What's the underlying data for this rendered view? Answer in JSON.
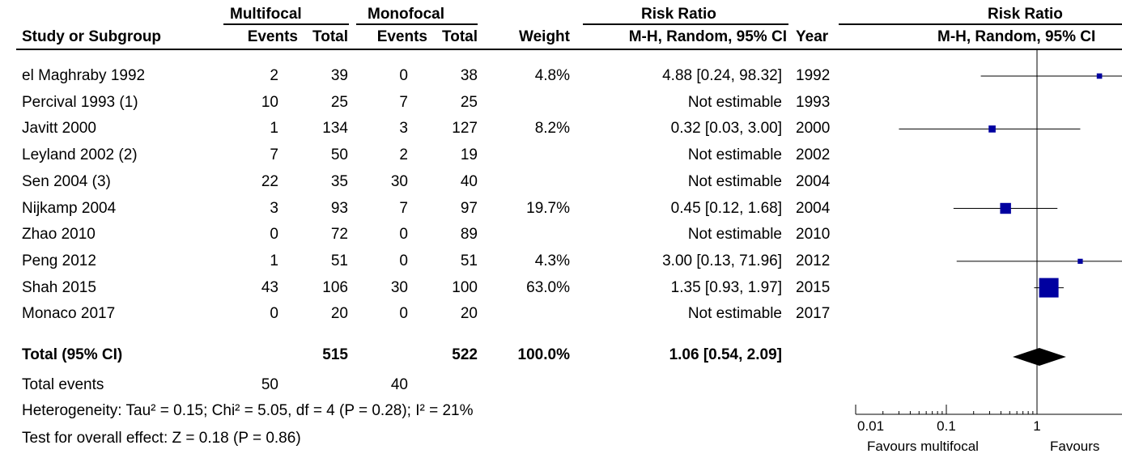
{
  "table": {
    "group_headers": {
      "multifocal": "Multifocal",
      "monofocal": "Monofocal",
      "risk_ratio": "Risk Ratio",
      "risk_ratio_plot": "Risk Ratio"
    },
    "columns": {
      "study": "Study or Subgroup",
      "events1": "Events",
      "total1": "Total",
      "events2": "Events",
      "total2": "Total",
      "weight": "Weight",
      "ci": "M-H, Random, 95% CI",
      "year": "Year",
      "plot_ci": "M-H, Random, 95% CI"
    },
    "rows": [
      {
        "study": "el Maghraby 1992",
        "events1": "2",
        "total1": "39",
        "events2": "0",
        "total2": "38",
        "weight": "4.8%",
        "ci": "4.88 [0.24, 98.32]",
        "year": "1992"
      },
      {
        "study": "Percival 1993 (1)",
        "events1": "10",
        "total1": "25",
        "events2": "7",
        "total2": "25",
        "weight": "",
        "ci": "Not estimable",
        "year": "1993"
      },
      {
        "study": "Javitt 2000",
        "events1": "1",
        "total1": "134",
        "events2": "3",
        "total2": "127",
        "weight": "8.2%",
        "ci": "0.32 [0.03, 3.00]",
        "year": "2000"
      },
      {
        "study": "Leyland 2002 (2)",
        "events1": "7",
        "total1": "50",
        "events2": "2",
        "total2": "19",
        "weight": "",
        "ci": "Not estimable",
        "year": "2002"
      },
      {
        "study": "Sen 2004 (3)",
        "events1": "22",
        "total1": "35",
        "events2": "30",
        "total2": "40",
        "weight": "",
        "ci": "Not estimable",
        "year": "2004"
      },
      {
        "study": "Nijkamp 2004",
        "events1": "3",
        "total1": "93",
        "events2": "7",
        "total2": "97",
        "weight": "19.7%",
        "ci": "0.45 [0.12, 1.68]",
        "year": "2004"
      },
      {
        "study": "Zhao 2010",
        "events1": "0",
        "total1": "72",
        "events2": "0",
        "total2": "89",
        "weight": "",
        "ci": "Not estimable",
        "year": "2010"
      },
      {
        "study": "Peng 2012",
        "events1": "1",
        "total1": "51",
        "events2": "0",
        "total2": "51",
        "weight": "4.3%",
        "ci": "3.00 [0.13, 71.96]",
        "year": "2012"
      },
      {
        "study": "Shah 2015",
        "events1": "43",
        "total1": "106",
        "events2": "30",
        "total2": "100",
        "weight": "63.0%",
        "ci": "1.35 [0.93, 1.97]",
        "year": "2015"
      },
      {
        "study": "Monaco 2017",
        "events1": "0",
        "total1": "20",
        "events2": "0",
        "total2": "20",
        "weight": "",
        "ci": "Not estimable",
        "year": "2017"
      }
    ],
    "total": {
      "label": "Total (95% CI)",
      "total1": "515",
      "total2": "522",
      "weight": "100.0%",
      "ci": "1.06 [0.54, 2.09]"
    },
    "total_events": {
      "label": "Total events",
      "events1": "50",
      "events2": "40"
    },
    "heterogeneity": "Heterogeneity: Tau² = 0.15; Chi² = 5.05, df = 4 (P = 0.28); I² = 21%",
    "overall_effect": "Test for overall effect: Z = 0.18 (P = 0.86)"
  },
  "chart_data": {
    "type": "forest",
    "scale": "log",
    "xlim": [
      0.01,
      100
    ],
    "reference_line": 1,
    "tick_labels": [
      "0.01",
      "0.1",
      "1"
    ],
    "ticks": [
      0.01,
      0.1,
      1
    ],
    "favours_left": "Favours multifocal",
    "favours_right": "Favours",
    "studies": [
      {
        "study": "el Maghraby 1992",
        "rr": 4.88,
        "lower": 0.24,
        "upper": 98.32,
        "weight": 4.8
      },
      {
        "study": "Percival 1993 (1)",
        "rr": null,
        "lower": null,
        "upper": null,
        "weight": 0
      },
      {
        "study": "Javitt 2000",
        "rr": 0.32,
        "lower": 0.03,
        "upper": 3.0,
        "weight": 8.2
      },
      {
        "study": "Leyland 2002 (2)",
        "rr": null,
        "lower": null,
        "upper": null,
        "weight": 0
      },
      {
        "study": "Sen 2004 (3)",
        "rr": null,
        "lower": null,
        "upper": null,
        "weight": 0
      },
      {
        "study": "Nijkamp 2004",
        "rr": 0.45,
        "lower": 0.12,
        "upper": 1.68,
        "weight": 19.7
      },
      {
        "study": "Zhao 2010",
        "rr": null,
        "lower": null,
        "upper": null,
        "weight": 0
      },
      {
        "study": "Peng 2012",
        "rr": 3.0,
        "lower": 0.13,
        "upper": 71.96,
        "weight": 4.3
      },
      {
        "study": "Shah 2015",
        "rr": 1.35,
        "lower": 0.93,
        "upper": 1.97,
        "weight": 63.0
      },
      {
        "study": "Monaco 2017",
        "rr": null,
        "lower": null,
        "upper": null,
        "weight": 0
      }
    ],
    "pooled": {
      "rr": 1.06,
      "lower": 0.54,
      "upper": 2.09
    },
    "colors": {
      "square": "#0000a0",
      "line": "#000000",
      "diamond": "#000000"
    }
  }
}
